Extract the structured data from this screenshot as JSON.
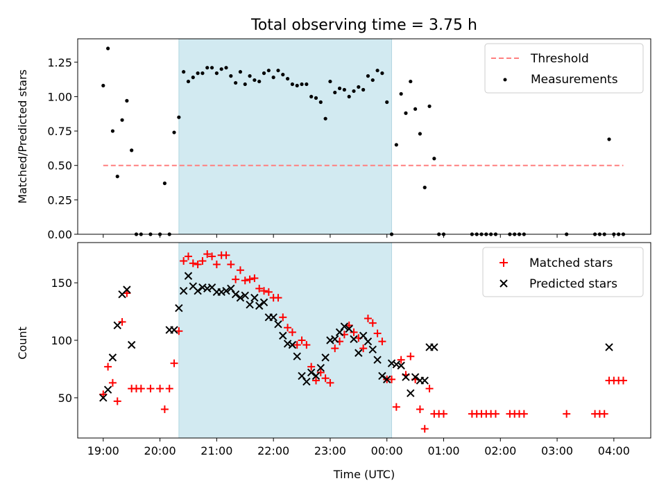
{
  "chart_data": [
    {
      "type": "scatter",
      "title": "Total observing time = 3.75 h",
      "ylabel": "Matched/Predicted stars",
      "ylim": [
        0,
        1.42
      ],
      "xlim_hours": [
        18.55,
        28.65
      ],
      "yticks": [
        0.0,
        0.25,
        0.5,
        0.75,
        1.0,
        1.25
      ],
      "ytick_labels": [
        "0.00",
        "0.25",
        "0.50",
        "0.75",
        "1.00",
        "1.25"
      ],
      "shaded_span": [
        "20:20",
        "24:05"
      ],
      "threshold": {
        "name": "Threshold",
        "y": 0.5,
        "x_range": [
          "19:00",
          "28:10"
        ],
        "color": "#ff7f7f",
        "style": "dashed"
      },
      "series": [
        {
          "name": "Measurements",
          "color": "#000000",
          "x": [
            "19:00",
            "19:05",
            "19:10",
            "19:15",
            "19:20",
            "19:25",
            "19:30",
            "19:35",
            "19:40",
            "19:50",
            "20:00",
            "20:05",
            "20:10",
            "20:15",
            "20:20",
            "20:25",
            "20:30",
            "20:35",
            "20:40",
            "20:45",
            "20:50",
            "20:55",
            "21:00",
            "21:05",
            "21:10",
            "21:15",
            "21:20",
            "21:25",
            "21:30",
            "21:35",
            "21:40",
            "21:45",
            "21:50",
            "21:55",
            "22:00",
            "22:05",
            "22:10",
            "22:15",
            "22:20",
            "22:25",
            "22:30",
            "22:35",
            "22:40",
            "22:45",
            "22:50",
            "22:55",
            "23:00",
            "23:05",
            "23:10",
            "23:15",
            "23:20",
            "23:25",
            "23:30",
            "23:35",
            "23:40",
            "23:45",
            "23:50",
            "23:55",
            "24:00",
            "24:05",
            "24:10",
            "24:15",
            "24:20",
            "24:25",
            "24:30",
            "24:35",
            "24:40",
            "24:45",
            "24:50",
            "24:55",
            "25:00",
            "25:30",
            "25:35",
            "25:40",
            "25:45",
            "25:50",
            "25:55",
            "26:10",
            "26:15",
            "26:20",
            "26:25",
            "27:10",
            "27:40",
            "27:45",
            "27:50",
            "27:55",
            "28:00",
            "28:05",
            "28:10"
          ],
          "y": [
            1.08,
            1.35,
            0.75,
            0.42,
            0.83,
            0.97,
            0.61,
            0.0,
            0.0,
            0.0,
            0.0,
            0.37,
            0.0,
            0.74,
            0.85,
            1.18,
            1.11,
            1.14,
            1.17,
            1.17,
            1.21,
            1.21,
            1.17,
            1.2,
            1.21,
            1.15,
            1.1,
            1.18,
            1.09,
            1.15,
            1.12,
            1.11,
            1.17,
            1.19,
            1.14,
            1.19,
            1.16,
            1.13,
            1.09,
            1.08,
            1.09,
            1.09,
            1.0,
            0.99,
            0.96,
            0.84,
            1.11,
            1.03,
            1.06,
            1.05,
            1.0,
            1.04,
            1.07,
            1.05,
            1.15,
            1.12,
            1.19,
            1.17,
            0.96,
            0.0,
            0.65,
            1.02,
            0.88,
            1.11,
            0.91,
            0.73,
            0.34,
            0.93,
            0.55,
            0.0,
            0.0,
            0.0,
            0.0,
            0.0,
            0.0,
            0.0,
            0.0,
            0.0,
            0.0,
            0.0,
            0.0,
            0.0,
            0.0,
            0.0,
            0.0,
            0.69,
            0.0,
            0.0,
            0.0
          ]
        }
      ],
      "legend": [
        "Threshold",
        "Measurements"
      ],
      "legend_placement": "upper right"
    },
    {
      "type": "scatter",
      "ylabel": "Count",
      "xlabel": "Time (UTC)",
      "ylim": [
        15,
        185
      ],
      "xlim_hours": [
        18.55,
        28.65
      ],
      "yticks": [
        50,
        100,
        150
      ],
      "ytick_labels": [
        "50",
        "100",
        "150"
      ],
      "xticks_hours": [
        19,
        20,
        21,
        22,
        23,
        24,
        25,
        26,
        27,
        28
      ],
      "xtick_labels": [
        "19:00",
        "20:00",
        "21:00",
        "22:00",
        "23:00",
        "00:00",
        "01:00",
        "02:00",
        "03:00",
        "04:00"
      ],
      "shaded_span": [
        "20:20",
        "24:05"
      ],
      "series": [
        {
          "name": "Matched stars",
          "color": "#ff0000",
          "marker": "plus",
          "x": [
            "19:00",
            "19:05",
            "19:10",
            "19:15",
            "19:20",
            "19:25",
            "19:30",
            "19:35",
            "19:40",
            "19:50",
            "20:00",
            "20:05",
            "20:10",
            "20:15",
            "20:20",
            "20:25",
            "20:30",
            "20:35",
            "20:40",
            "20:45",
            "20:50",
            "20:55",
            "21:00",
            "21:05",
            "21:10",
            "21:15",
            "21:20",
            "21:25",
            "21:30",
            "21:35",
            "21:40",
            "21:45",
            "21:50",
            "21:55",
            "22:00",
            "22:05",
            "22:10",
            "22:15",
            "22:20",
            "22:25",
            "22:30",
            "22:35",
            "22:40",
            "22:45",
            "22:50",
            "22:55",
            "23:00",
            "23:05",
            "23:10",
            "23:15",
            "23:20",
            "23:25",
            "23:30",
            "23:35",
            "23:40",
            "23:45",
            "23:50",
            "23:55",
            "24:00",
            "24:05",
            "24:10",
            "24:15",
            "24:20",
            "24:25",
            "24:30",
            "24:35",
            "24:40",
            "24:45",
            "24:50",
            "24:55",
            "25:00",
            "25:30",
            "25:35",
            "25:40",
            "25:45",
            "25:50",
            "25:55",
            "26:10",
            "26:15",
            "26:20",
            "26:25",
            "27:10",
            "27:40",
            "27:45",
            "27:50",
            "27:55",
            "28:00",
            "28:05",
            "28:10"
          ],
          "y": [
            53,
            77,
            63,
            47,
            116,
            141,
            58,
            58,
            58,
            58,
            58,
            40,
            58,
            80,
            108,
            169,
            173,
            167,
            166,
            169,
            175,
            173,
            166,
            174,
            174,
            166,
            153,
            161,
            152,
            153,
            154,
            145,
            143,
            142,
            137,
            137,
            120,
            111,
            107,
            96,
            100,
            96,
            77,
            65,
            72,
            67,
            63,
            93,
            99,
            105,
            113,
            107,
            102,
            93,
            119,
            115,
            106,
            99,
            66,
            66,
            42,
            83,
            70,
            86,
            66,
            40,
            23,
            58,
            36,
            36,
            36,
            36,
            36,
            36,
            36,
            36,
            36,
            36,
            36,
            36,
            36,
            36,
            36,
            36,
            36,
            65,
            65,
            65,
            65
          ]
        },
        {
          "name": "Predicted stars",
          "color": "#000000",
          "marker": "x",
          "x": [
            "19:00",
            "19:05",
            "19:10",
            "19:15",
            "19:20",
            "19:25",
            "19:30",
            "20:10",
            "20:15",
            "20:20",
            "20:25",
            "20:30",
            "20:35",
            "20:40",
            "20:45",
            "20:50",
            "20:55",
            "21:00",
            "21:05",
            "21:10",
            "21:15",
            "21:20",
            "21:25",
            "21:30",
            "21:35",
            "21:40",
            "21:45",
            "21:50",
            "21:55",
            "22:00",
            "22:05",
            "22:10",
            "22:15",
            "22:20",
            "22:25",
            "22:30",
            "22:35",
            "22:40",
            "22:45",
            "22:50",
            "22:55",
            "23:00",
            "23:05",
            "23:10",
            "23:15",
            "23:20",
            "23:25",
            "23:30",
            "23:35",
            "23:40",
            "23:45",
            "23:50",
            "23:55",
            "24:00",
            "24:05",
            "24:10",
            "24:15",
            "24:20",
            "24:25",
            "24:30",
            "24:35",
            "24:40",
            "24:45",
            "24:50",
            "27:55"
          ],
          "y": [
            50,
            57,
            85,
            113,
            140,
            144,
            96,
            109,
            109,
            128,
            143,
            156,
            147,
            143,
            146,
            145,
            146,
            142,
            142,
            143,
            145,
            140,
            137,
            139,
            131,
            137,
            130,
            133,
            120,
            120,
            114,
            104,
            97,
            96,
            86,
            69,
            64,
            72,
            69,
            76,
            85,
            100,
            101,
            107,
            112,
            110,
            101,
            89,
            104,
            99,
            92,
            83,
            69,
            66,
            80,
            79,
            78,
            68,
            54,
            68,
            65,
            65,
            94,
            94,
            94
          ]
        }
      ],
      "legend": [
        "Matched stars",
        "Predicted stars"
      ],
      "legend_placement": "upper right"
    }
  ]
}
